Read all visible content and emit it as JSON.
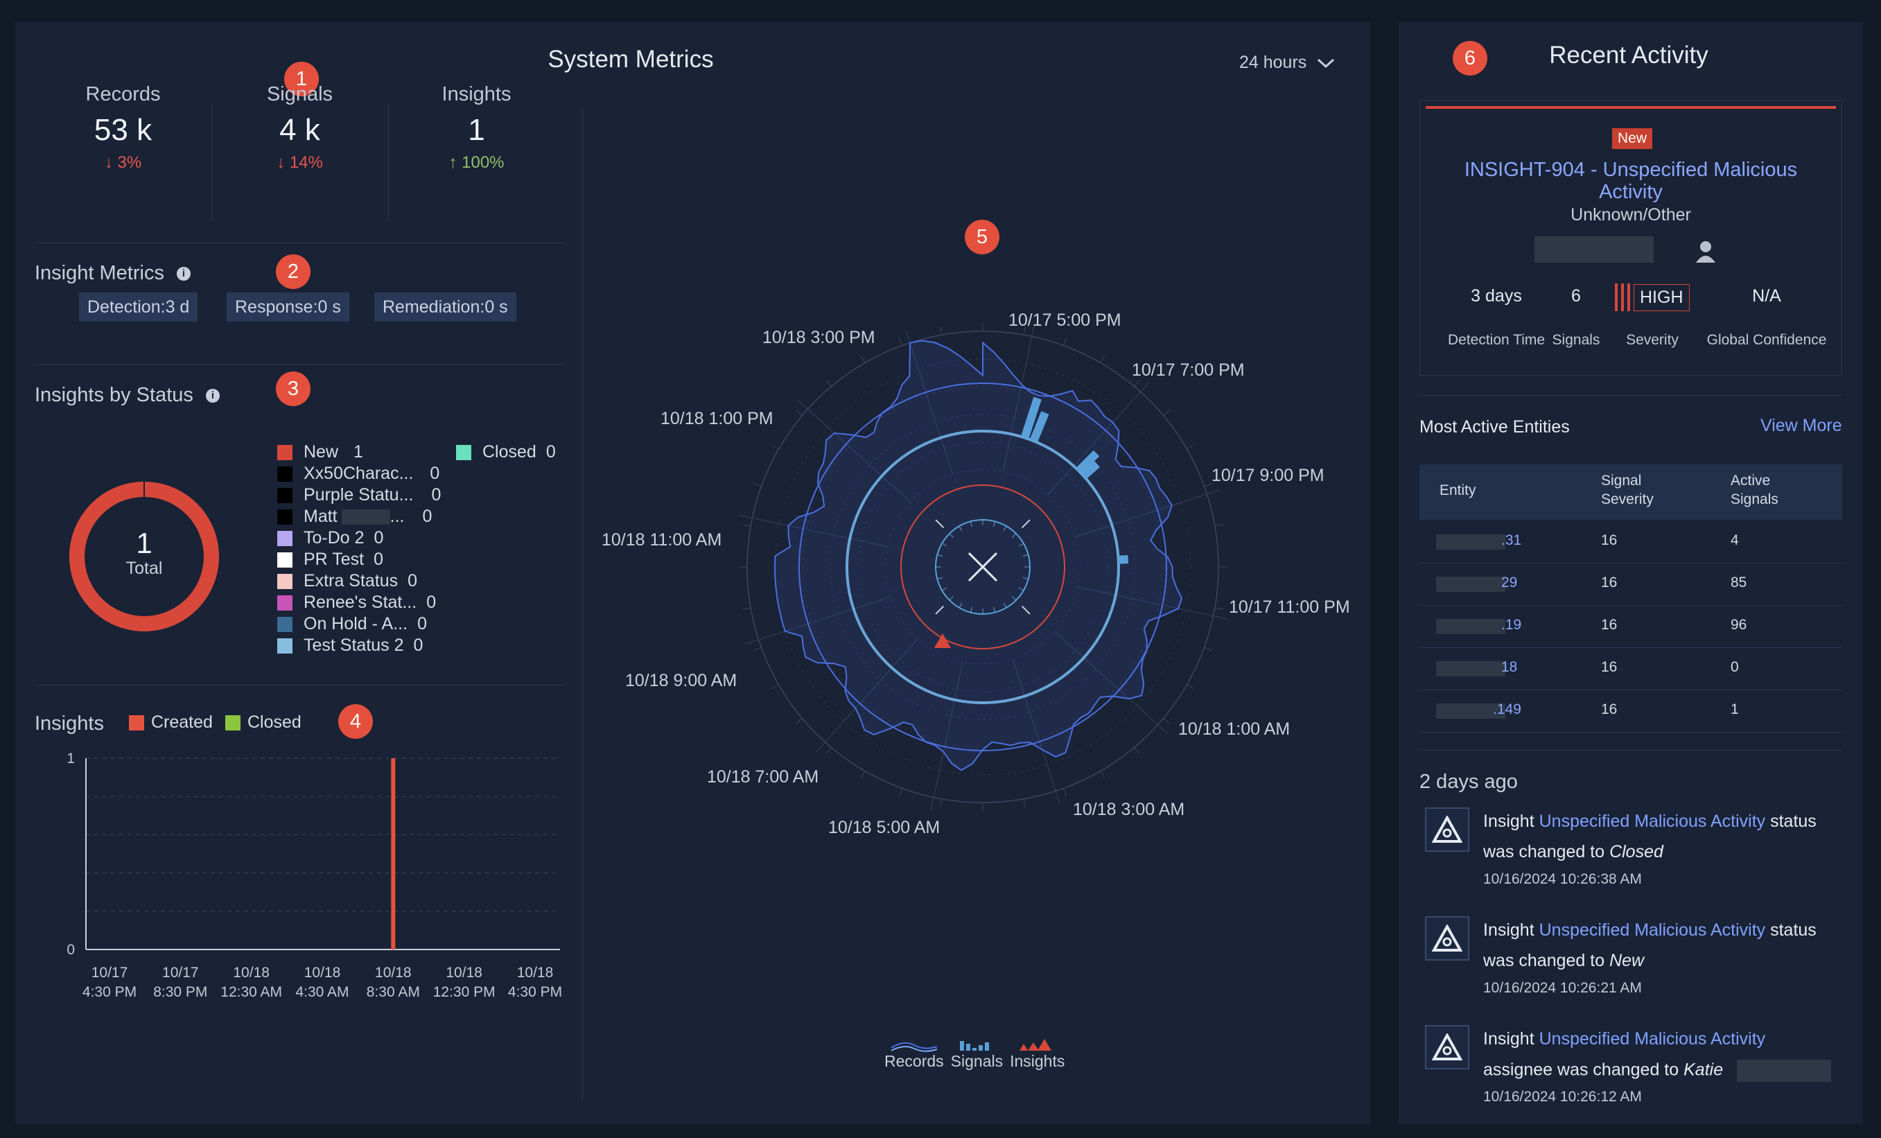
{
  "system_metrics": {
    "title": "System Metrics",
    "range_select": "24 hours",
    "badges": [
      "1",
      "2",
      "3",
      "4",
      "5",
      "6"
    ],
    "kpis": [
      {
        "label": "Records",
        "value": "53 k",
        "change": "3%",
        "direction": "down"
      },
      {
        "label": "Signals",
        "value": "4 k",
        "change": "14%",
        "direction": "down"
      },
      {
        "label": "Insights",
        "value": "1",
        "change": "100%",
        "direction": "up"
      }
    ],
    "insight_metrics": {
      "title": "Insight Metrics",
      "chips": [
        {
          "label": "Detection",
          "value": "3 d"
        },
        {
          "label": "Response",
          "value": "0 s"
        },
        {
          "label": "Remediation",
          "value": "0 s"
        }
      ]
    },
    "insights_by_status": {
      "title": "Insights by Status",
      "total_value": "1",
      "total_label": "Total",
      "legend": [
        {
          "name": "New",
          "count": "1",
          "color": "#d8483a"
        },
        {
          "name": "Xx50Charac...",
          "count": "0",
          "color": "#000000"
        },
        {
          "name": "Purple Statu...",
          "count": "0",
          "color": "#000000"
        },
        {
          "name": "Matt",
          "suffix": "...",
          "count": "0",
          "color": "#000000"
        },
        {
          "name": "To-Do 2",
          "count": "0",
          "color": "#b7a6f2"
        },
        {
          "name": "PR Test",
          "count": "0",
          "color": "#ffffff"
        },
        {
          "name": "Extra Status",
          "count": "0",
          "color": "#f6c9c4"
        },
        {
          "name": "Renee's Stat...",
          "count": "0",
          "color": "#c954b8"
        },
        {
          "name": "On Hold - A...",
          "count": "0",
          "color": "#3a6c96"
        },
        {
          "name": "Test Status 2",
          "count": "0",
          "color": "#88bde0"
        },
        {
          "name": "Closed",
          "count": "0",
          "color": "#69e0c0"
        }
      ]
    },
    "insights_chart": {
      "title": "Insights",
      "legend_created": "Created",
      "legend_closed": "Closed",
      "created_color": "#e5533f",
      "closed_color": "#8cc63f"
    },
    "polar": {
      "time_labels": [
        "10/17 5:00 PM",
        "10/17 7:00 PM",
        "10/17 9:00 PM",
        "10/17 11:00 PM",
        "10/18 1:00 AM",
        "10/18 3:00 AM",
        "10/18 5:00 AM",
        "10/18 7:00 AM",
        "10/18 9:00 AM",
        "10/18 11:00 AM",
        "10/18 1:00 PM",
        "10/18 3:00 PM"
      ],
      "legend": [
        "Records",
        "Signals",
        "Insights"
      ]
    }
  },
  "chart_data": {
    "type": "bar",
    "title": "Insights",
    "x": [
      "10/17 4:30 PM",
      "10/17 8:30 PM",
      "10/18 12:30 AM",
      "10/18 4:30 AM",
      "10/18 8:30 AM",
      "10/18 12:30 PM",
      "10/18 4:30 PM"
    ],
    "x_tick_lines": [
      [
        "10/17",
        "4:30 PM"
      ],
      [
        "10/17",
        "8:30 PM"
      ],
      [
        "10/18",
        "12:30 AM"
      ],
      [
        "10/18",
        "4:30 AM"
      ],
      [
        "10/18",
        "8:30 AM"
      ],
      [
        "10/18",
        "12:30 PM"
      ],
      [
        "10/18",
        "4:30 PM"
      ]
    ],
    "y_ticks": [
      "1",
      "0"
    ],
    "ylim": [
      0,
      1
    ],
    "series": [
      {
        "name": "Created",
        "points": [
          {
            "x": "10/18 8:30 AM",
            "y": 1
          }
        ]
      },
      {
        "name": "Closed",
        "points": []
      }
    ],
    "grid": true,
    "legend": "top-left"
  },
  "recent_activity": {
    "title": "Recent Activity",
    "card": {
      "status_badge": "New",
      "title": "INSIGHT-904 - Unspecified Malicious Activity",
      "subtitle": "Unknown/Other",
      "stats": [
        {
          "value": "3 days",
          "label": "Detection Time"
        },
        {
          "value": "6",
          "label": "Signals"
        },
        {
          "value": "HIGH",
          "label": "Severity"
        },
        {
          "value": "N/A",
          "label": "Global Confidence"
        }
      ]
    },
    "entities": {
      "title": "Most Active Entities",
      "view_more": "View More",
      "headers": [
        [
          "Entity"
        ],
        [
          "Signal",
          "Severity"
        ],
        [
          "Active",
          "Signals"
        ]
      ],
      "rows": [
        {
          "entity": ".31",
          "severity": "16",
          "signals": "4"
        },
        {
          "entity": "29",
          "severity": "16",
          "signals": "85"
        },
        {
          "entity": ".19",
          "severity": "16",
          "signals": "96"
        },
        {
          "entity": "18",
          "severity": "16",
          "signals": "0"
        },
        {
          "entity": ".149",
          "severity": "16",
          "signals": "1"
        }
      ]
    },
    "group_label": "2 days ago",
    "activities": [
      {
        "prefix": "Insight",
        "link": "Unspecified Malicious Activity",
        "suffix": "status",
        "line2": "was changed to",
        "value": "Closed",
        "timestamp": "10/16/2024 10:26:38 AM"
      },
      {
        "prefix": "Insight",
        "link": "Unspecified Malicious Activity",
        "suffix": "status",
        "line2": "was changed to",
        "value": "New",
        "timestamp": "10/16/2024 10:26:21 AM"
      },
      {
        "prefix": "Insight",
        "link": "Unspecified Malicious Activity",
        "suffix": "",
        "line2": "assignee was changed to",
        "value": "Katie",
        "timestamp": "10/16/2024 10:26:12 AM"
      }
    ]
  }
}
